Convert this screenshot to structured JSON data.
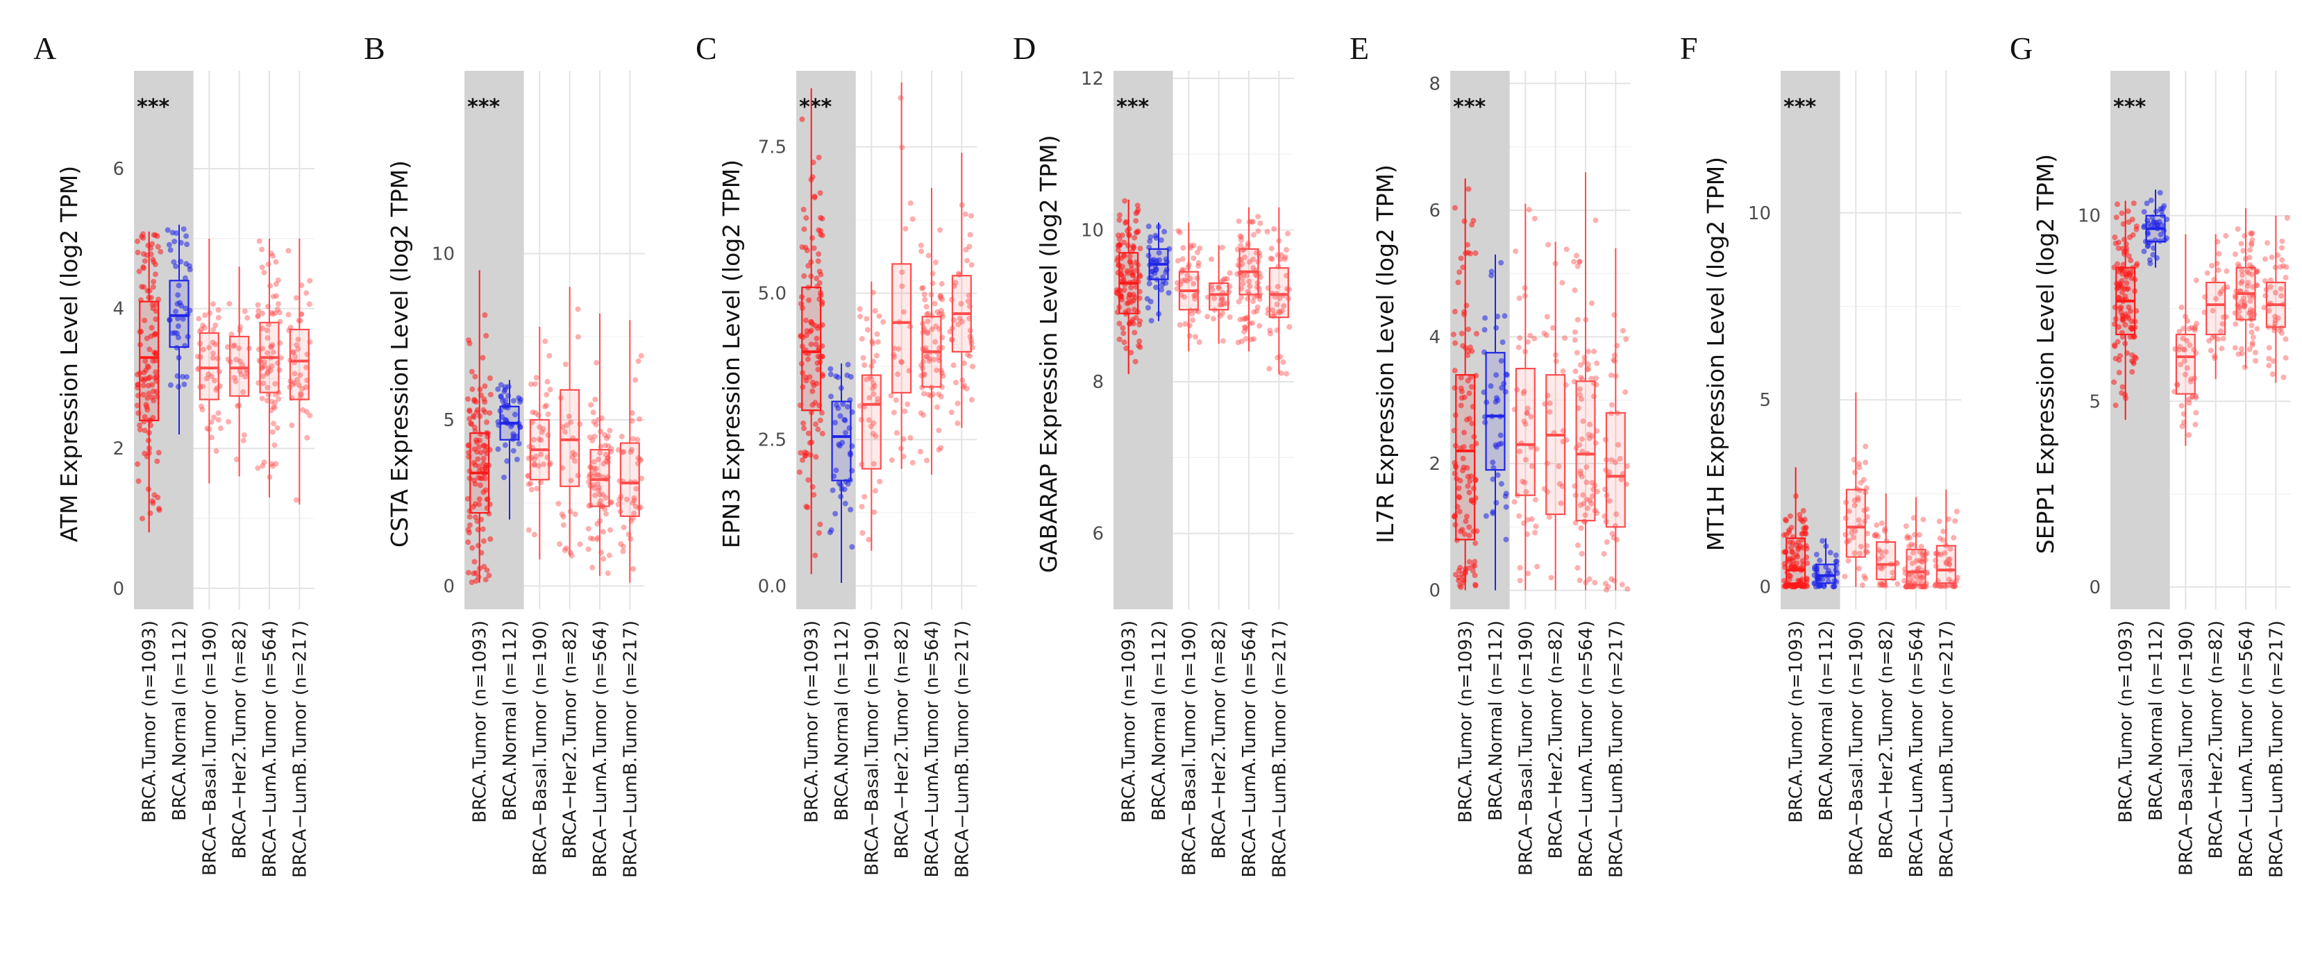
{
  "colors": {
    "tumor": "#ff1a1a",
    "normal": "#1f24e8",
    "subtype": "#ff4d4d",
    "highlight_band": "#d3d3d3"
  },
  "categories": [
    "BRCA.Tumor (n=1093)",
    "BRCA.Normal (n=112)",
    "BRCA−Basal.Tumor (n=190)",
    "BRCA−Her2.Tumor (n=82)",
    "BRCA−LumA.Tumor (n=564)",
    "BRCA−LumB.Tumor (n=217)"
  ],
  "chart_data": [
    {
      "type": "box",
      "panel": "A",
      "ylabel": "ATM Expression Level (log2 TPM)",
      "ylim": [
        -0.3,
        7.4
      ],
      "yticks": [
        0,
        2,
        4,
        6
      ],
      "yticklabels": [
        "0",
        "2",
        "4",
        "6"
      ],
      "significance": "***",
      "boxes": [
        {
          "q1": 2.4,
          "median": 3.3,
          "q3": 4.1,
          "whisker_low": 0.8,
          "whisker_high": 5.1
        },
        {
          "q1": 3.45,
          "median": 3.9,
          "q3": 4.4,
          "whisker_low": 2.2,
          "whisker_high": 5.2
        },
        {
          "q1": 2.7,
          "median": 3.15,
          "q3": 3.65,
          "whisker_low": 1.5,
          "whisker_high": 5.0
        },
        {
          "q1": 2.75,
          "median": 3.15,
          "q3": 3.6,
          "whisker_low": 1.6,
          "whisker_high": 4.6
        },
        {
          "q1": 2.8,
          "median": 3.3,
          "q3": 3.8,
          "whisker_low": 1.3,
          "whisker_high": 5.0
        },
        {
          "q1": 2.7,
          "median": 3.25,
          "q3": 3.7,
          "whisker_low": 1.2,
          "whisker_high": 5.0
        }
      ]
    },
    {
      "type": "box",
      "panel": "B",
      "ylabel": "CSTA Expression Level (log2 TPM)",
      "ylim": [
        -0.7,
        15.5
      ],
      "yticks": [
        0,
        5,
        10
      ],
      "yticklabels": [
        "0",
        "5",
        "10"
      ],
      "significance": "***",
      "boxes": [
        {
          "q1": 2.2,
          "median": 3.4,
          "q3": 4.6,
          "whisker_low": 0.1,
          "whisker_high": 9.5
        },
        {
          "q1": 4.4,
          "median": 4.9,
          "q3": 5.4,
          "whisker_low": 2.0,
          "whisker_high": 6.2
        },
        {
          "q1": 3.2,
          "median": 4.1,
          "q3": 5.0,
          "whisker_low": 0.8,
          "whisker_high": 7.8
        },
        {
          "q1": 3.0,
          "median": 4.4,
          "q3": 5.9,
          "whisker_low": 0.9,
          "whisker_high": 9.0
        },
        {
          "q1": 2.4,
          "median": 3.2,
          "q3": 4.1,
          "whisker_low": 0.3,
          "whisker_high": 8.2
        },
        {
          "q1": 2.1,
          "median": 3.1,
          "q3": 4.3,
          "whisker_low": 0.1,
          "whisker_high": 8.0
        }
      ]
    },
    {
      "type": "box",
      "panel": "C",
      "ylabel": "EPN3 Expression Level (log2 TPM)",
      "ylim": [
        -0.4,
        8.8
      ],
      "yticks": [
        0,
        2.5,
        5,
        7.5
      ],
      "yticklabels": [
        "0.0",
        "2.5",
        "5.0",
        "7.5"
      ],
      "significance": "***",
      "boxes": [
        {
          "q1": 3.0,
          "median": 4.0,
          "q3": 5.1,
          "whisker_low": 0.2,
          "whisker_high": 8.5
        },
        {
          "q1": 1.8,
          "median": 2.55,
          "q3": 3.15,
          "whisker_low": 0.05,
          "whisker_high": 3.8
        },
        {
          "q1": 2.0,
          "median": 3.1,
          "q3": 3.6,
          "whisker_low": 0.6,
          "whisker_high": 5.2
        },
        {
          "q1": 3.3,
          "median": 4.5,
          "q3": 5.5,
          "whisker_low": 2.0,
          "whisker_high": 8.6
        },
        {
          "q1": 3.4,
          "median": 4.0,
          "q3": 4.6,
          "whisker_low": 1.9,
          "whisker_high": 6.8
        },
        {
          "q1": 4.0,
          "median": 4.65,
          "q3": 5.3,
          "whisker_low": 2.7,
          "whisker_high": 7.4
        }
      ]
    },
    {
      "type": "box",
      "panel": "D",
      "ylabel": "GABARAP Expression Level (log2 TPM)",
      "ylim": [
        5.0,
        12.1
      ],
      "yticks": [
        6,
        8,
        10,
        12
      ],
      "yticklabels": [
        "6",
        "8",
        "10",
        "12"
      ],
      "significance": "***",
      "boxes": [
        {
          "q1": 8.9,
          "median": 9.3,
          "q3": 9.7,
          "whisker_low": 8.1,
          "whisker_high": 10.4
        },
        {
          "q1": 9.35,
          "median": 9.55,
          "q3": 9.75,
          "whisker_low": 8.8,
          "whisker_high": 10.1
        },
        {
          "q1": 8.95,
          "median": 9.2,
          "q3": 9.45,
          "whisker_low": 8.4,
          "whisker_high": 10.1
        },
        {
          "q1": 8.95,
          "median": 9.15,
          "q3": 9.3,
          "whisker_low": 8.5,
          "whisker_high": 9.8
        },
        {
          "q1": 9.15,
          "median": 9.45,
          "q3": 9.75,
          "whisker_low": 8.4,
          "whisker_high": 10.3
        },
        {
          "q1": 8.85,
          "median": 9.15,
          "q3": 9.5,
          "whisker_low": 8.1,
          "whisker_high": 10.3
        }
      ]
    },
    {
      "type": "box",
      "panel": "E",
      "ylabel": "IL7R Expression Level (log2 TPM)",
      "ylim": [
        -0.3,
        8.2
      ],
      "yticks": [
        0,
        2,
        4,
        6,
        8
      ],
      "yticklabels": [
        "0",
        "2",
        "4",
        "6",
        "8"
      ],
      "significance": "***",
      "boxes": [
        {
          "q1": 0.8,
          "median": 2.2,
          "q3": 3.4,
          "whisker_low": 0.0,
          "whisker_high": 6.5
        },
        {
          "q1": 1.9,
          "median": 2.75,
          "q3": 3.75,
          "whisker_low": 0.0,
          "whisker_high": 5.3
        },
        {
          "q1": 1.5,
          "median": 2.3,
          "q3": 3.5,
          "whisker_low": 0.0,
          "whisker_high": 6.1
        },
        {
          "q1": 1.2,
          "median": 2.45,
          "q3": 3.4,
          "whisker_low": 0.0,
          "whisker_high": 5.5
        },
        {
          "q1": 1.1,
          "median": 2.15,
          "q3": 3.3,
          "whisker_low": 0.0,
          "whisker_high": 6.6
        },
        {
          "q1": 1.0,
          "median": 1.8,
          "q3": 2.8,
          "whisker_low": 0.0,
          "whisker_high": 5.4
        }
      ]
    },
    {
      "type": "box",
      "panel": "F",
      "ylabel": "MT1H Expression Level (log2 TPM)",
      "ylim": [
        -0.6,
        13.8
      ],
      "yticks": [
        0,
        5,
        10
      ],
      "yticklabels": [
        "0",
        "5",
        "10"
      ],
      "significance": "***",
      "boxes": [
        {
          "q1": 0.1,
          "median": 0.45,
          "q3": 1.3,
          "whisker_low": 0.0,
          "whisker_high": 3.2
        },
        {
          "q1": 0.1,
          "median": 0.3,
          "q3": 0.6,
          "whisker_low": 0.0,
          "whisker_high": 1.3
        },
        {
          "q1": 0.8,
          "median": 1.6,
          "q3": 2.6,
          "whisker_low": 0.0,
          "whisker_high": 5.2
        },
        {
          "q1": 0.2,
          "median": 0.6,
          "q3": 1.2,
          "whisker_low": 0.0,
          "whisker_high": 2.5
        },
        {
          "q1": 0.05,
          "median": 0.4,
          "q3": 1.0,
          "whisker_low": 0.0,
          "whisker_high": 2.4
        },
        {
          "q1": 0.1,
          "median": 0.45,
          "q3": 1.1,
          "whisker_low": 0.0,
          "whisker_high": 2.6
        }
      ]
    },
    {
      "type": "box",
      "panel": "G",
      "ylabel": "SEPP1 Expression Level (log2 TPM)",
      "ylim": [
        -0.6,
        13.9
      ],
      "yticks": [
        0,
        5,
        10
      ],
      "yticklabels": [
        "0",
        "5",
        "10"
      ],
      "significance": "***",
      "boxes": [
        {
          "q1": 6.8,
          "median": 7.7,
          "q3": 8.6,
          "whisker_low": 4.5,
          "whisker_high": 10.4
        },
        {
          "q1": 9.3,
          "median": 9.65,
          "q3": 10.0,
          "whisker_low": 8.6,
          "whisker_high": 10.7
        },
        {
          "q1": 5.2,
          "median": 6.2,
          "q3": 6.8,
          "whisker_low": 3.8,
          "whisker_high": 9.5
        },
        {
          "q1": 6.8,
          "median": 7.6,
          "q3": 8.2,
          "whisker_low": 5.6,
          "whisker_high": 9.5
        },
        {
          "q1": 7.2,
          "median": 7.9,
          "q3": 8.6,
          "whisker_low": 5.9,
          "whisker_high": 10.2
        },
        {
          "q1": 7.0,
          "median": 7.6,
          "q3": 8.2,
          "whisker_low": 5.5,
          "whisker_high": 10.0
        }
      ]
    }
  ]
}
